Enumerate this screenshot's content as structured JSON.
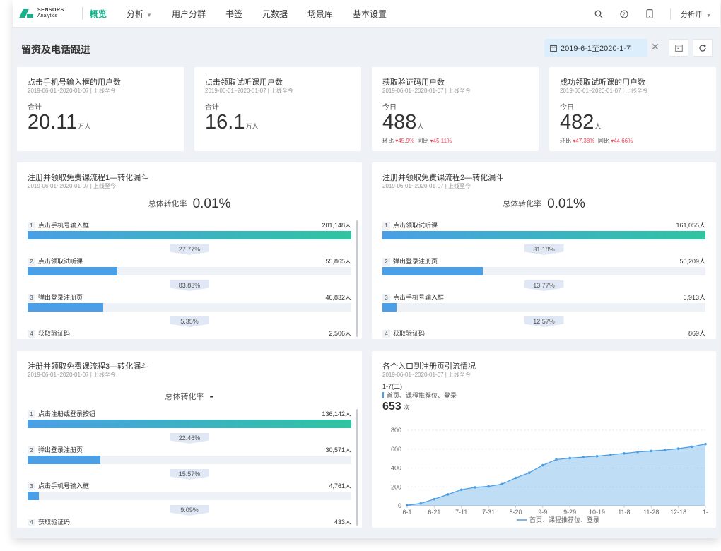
{
  "nav": {
    "logo_line1": "SENSORS",
    "logo_line2": "Analytics",
    "items": [
      "概览",
      "分析",
      "用户分群",
      "书签",
      "元数据",
      "场景库",
      "基本设置"
    ],
    "user": "分析师"
  },
  "page": {
    "title": "留资及电话跟进",
    "date_range": "2019-6-1至2020-1-7"
  },
  "kpis": [
    {
      "title": "点击手机号输入框的用户数",
      "sub": "2019-06-01~2020-01-07 | 上线至今",
      "label": "合计",
      "value": "20.11",
      "unit": "万人"
    },
    {
      "title": "点击领取试听课用户数",
      "sub": "2019-06-01~2020-01-07 | 上线至今",
      "label": "合计",
      "value": "16.1",
      "unit": "万人"
    },
    {
      "title": "获取验证码用户数",
      "sub": "2019-06-01~2020-01-07 | 上线至今",
      "label": "今日",
      "value": "488",
      "unit": "人",
      "ring_label": "环比",
      "ring_value": "45.9%",
      "yoy_label": "同比",
      "yoy_value": "45.11%"
    },
    {
      "title": "成功领取试听课的用户数",
      "sub": "2019-06-01~2020-01-07 | 上线至今",
      "label": "今日",
      "value": "482",
      "unit": "人",
      "ring_label": "环比",
      "ring_value": "47.38%",
      "yoy_label": "同比",
      "yoy_value": "44.66%"
    }
  ],
  "funnels": [
    {
      "title": "注册并领取免费课流程1—转化漏斗",
      "sub": "2019-06-01~2020-01-07 | 上线至今",
      "total_label": "总体转化率",
      "total_value": "0.01%",
      "steps": [
        {
          "num": "1",
          "name": "点击手机号输入框",
          "count": "201,148人",
          "fill": 1.0
        },
        {
          "num": "2",
          "name": "点击领取试听课",
          "count": "55,865人",
          "fill": 0.2777
        },
        {
          "num": "3",
          "name": "弹出登录注册页",
          "count": "46,832人",
          "fill": 0.2328
        },
        {
          "num": "4",
          "name": "获取验证码",
          "count": "2,506人",
          "fill": 0.0125
        }
      ],
      "rates": [
        "27.77%",
        "83.83%",
        "5.35%"
      ]
    },
    {
      "title": "注册并领取免费课流程2—转化漏斗",
      "sub": "2019-06-01~2020-01-07 | 上线至今",
      "total_label": "总体转化率",
      "total_value": "0.01%",
      "steps": [
        {
          "num": "1",
          "name": "点击领取试听课",
          "count": "161,055人",
          "fill": 1.0
        },
        {
          "num": "2",
          "name": "弹出登录注册页",
          "count": "50,209人",
          "fill": 0.3118
        },
        {
          "num": "3",
          "name": "点击手机号输入框",
          "count": "6,913人",
          "fill": 0.0429
        },
        {
          "num": "4",
          "name": "获取验证码",
          "count": "869人",
          "fill": 0.0054
        }
      ],
      "rates": [
        "31.18%",
        "13.77%",
        "12.57%"
      ]
    },
    {
      "title": "注册并领取免费课流程3—转化漏斗",
      "sub": "2019-06-01~2020-01-07 | 上线至今",
      "total_label": "总体转化率",
      "total_value": "-",
      "steps": [
        {
          "num": "1",
          "name": "点击注册或登录按钮",
          "count": "136,142人",
          "fill": 1.0
        },
        {
          "num": "2",
          "name": "弹出登录注册页",
          "count": "30,571人",
          "fill": 0.2246
        },
        {
          "num": "3",
          "name": "点击手机号输入框",
          "count": "4,761人",
          "fill": 0.035
        },
        {
          "num": "4",
          "name": "获取验证码",
          "count": "433人",
          "fill": 0.0032
        }
      ],
      "rates": [
        "22.46%",
        "15.57%",
        "9.09%"
      ]
    }
  ],
  "line_card": {
    "title": "各个入口到注册页引流情况",
    "sub": "2019-06-01~2020-01-07 | 上线至今",
    "legend_date": "1-7(二)",
    "legend_series": "首页、课程推荐位、登录",
    "legend_value": "653",
    "legend_unit": "次"
  },
  "chart_data": {
    "type": "area",
    "x": [
      "6-1",
      "6-11",
      "6-21",
      "7-1",
      "7-11",
      "7-21",
      "7-31",
      "8-10",
      "8-20",
      "8-30",
      "9-9",
      "9-19",
      "9-29",
      "10-9",
      "10-19",
      "10-29",
      "11-8",
      "11-18",
      "11-28",
      "12-8",
      "12-18",
      "12-28",
      "1-7"
    ],
    "x_tick_labels": [
      "6-1",
      "6-21",
      "7-11",
      "7-31",
      "8-20",
      "9-9",
      "9-29",
      "10-19",
      "11-8",
      "11-28",
      "12-18",
      "1-"
    ],
    "series": [
      {
        "name": "首页、课程推荐位、登录",
        "values": [
          5,
          25,
          70,
          120,
          170,
          195,
          205,
          230,
          295,
          350,
          430,
          490,
          505,
          515,
          525,
          540,
          555,
          570,
          580,
          590,
          605,
          625,
          653
        ]
      }
    ],
    "ylim": [
      0,
      800
    ],
    "y_ticks": [
      0,
      200,
      400,
      600,
      800
    ],
    "grid": true,
    "legend": "bottom",
    "color": "#4b9fe6"
  }
}
